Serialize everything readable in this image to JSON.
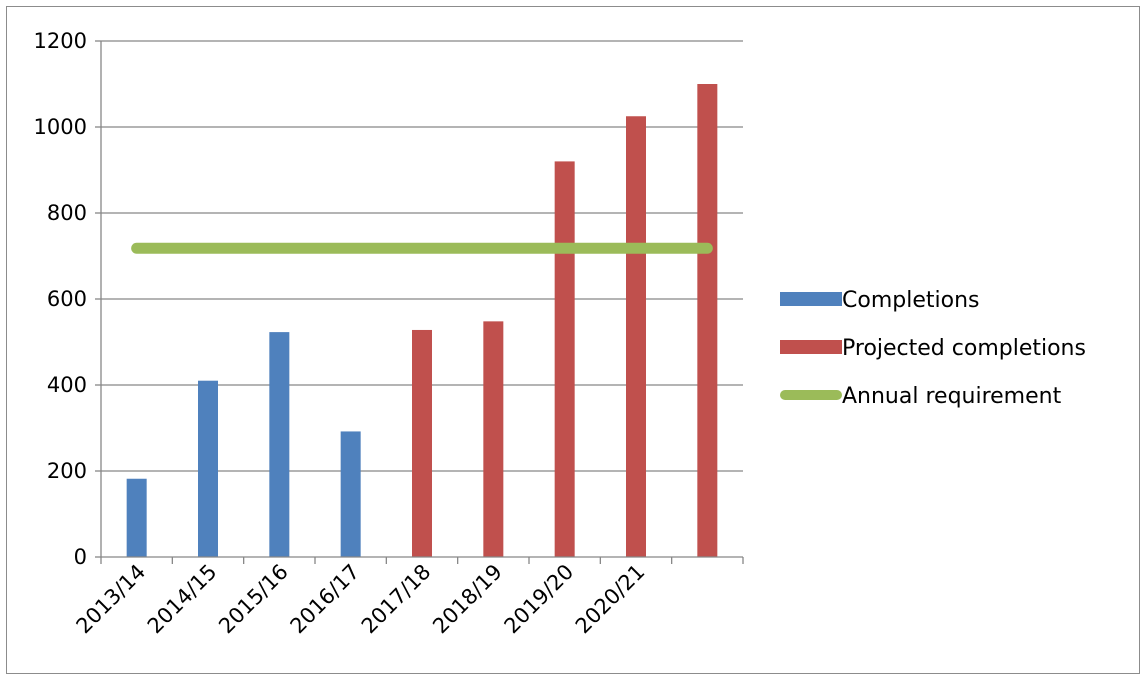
{
  "chart_data": {
    "type": "bar",
    "title": "",
    "xlabel": "",
    "ylabel": "",
    "categories": [
      "2013/14",
      "2014/15",
      "2015/16",
      "2016/17",
      "2017/18",
      "2018/19",
      "2019/20",
      "2020/21",
      ""
    ],
    "ylim": [
      0,
      1200
    ],
    "yticks": [
      0,
      200,
      400,
      600,
      800,
      1000,
      1200
    ],
    "grid": true,
    "legend_position": "right",
    "series": [
      {
        "name": "Completions",
        "kind": "bar",
        "color": "#4F81BD",
        "values": [
          182,
          410,
          523,
          292,
          null,
          null,
          null,
          null,
          null
        ]
      },
      {
        "name": "Projected completions",
        "kind": "bar",
        "color": "#C0504D",
        "values": [
          null,
          null,
          null,
          null,
          528,
          548,
          920,
          1025,
          1100
        ]
      },
      {
        "name": "Annual requirement",
        "kind": "line",
        "color": "#9BBB59",
        "values": [
          718,
          718,
          718,
          718,
          718,
          718,
          718,
          718,
          718
        ]
      }
    ]
  }
}
